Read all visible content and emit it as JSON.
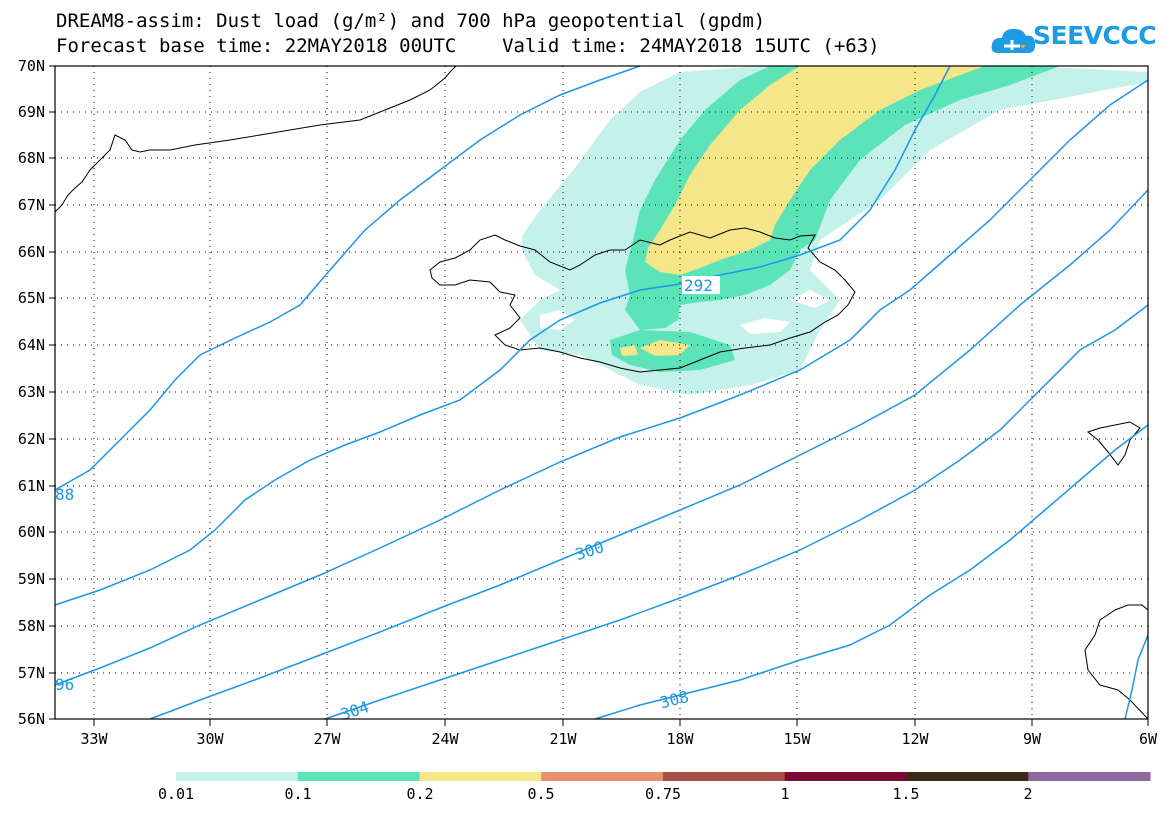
{
  "header": {
    "line1": "DREAM8-assim: Dust load (g/m²) and 700 hPa geopotential (gpdm)",
    "line2": "Forecast base time: 22MAY2018 00UTC    Valid time: 24MAY2018 15UTC (+63)"
  },
  "logo": {
    "text": "SEEVCCC",
    "icon": "cloud-icon",
    "color": "#1e9be3"
  },
  "map": {
    "lat_labels": [
      "70N",
      "69N",
      "68N",
      "67N",
      "66N",
      "65N",
      "64N",
      "63N",
      "62N",
      "61N",
      "60N",
      "59N",
      "58N",
      "57N",
      "56N"
    ],
    "lon_labels": [
      "33W",
      "30W",
      "27W",
      "24W",
      "21W",
      "18W",
      "15W",
      "12W",
      "9W",
      "6W"
    ],
    "lat_range": [
      56,
      70
    ],
    "lon_range": [
      -34.3,
      -6
    ],
    "contour_labels": [
      "88",
      "96",
      "292",
      "300",
      "304",
      "308"
    ],
    "contour_color": "#1e96e6",
    "gridlines": "dotted"
  },
  "colorbar": {
    "ticks": [
      "0.01",
      "0.1",
      "0.2",
      "0.5",
      "0.75",
      "1",
      "1.5",
      "2"
    ],
    "colors": [
      "#c4f2ea",
      "#5ce3b8",
      "#f5e68a",
      "#e8916c",
      "#a85046",
      "#7c0a33",
      "#3c2a18",
      "#8e6aa0"
    ]
  }
}
